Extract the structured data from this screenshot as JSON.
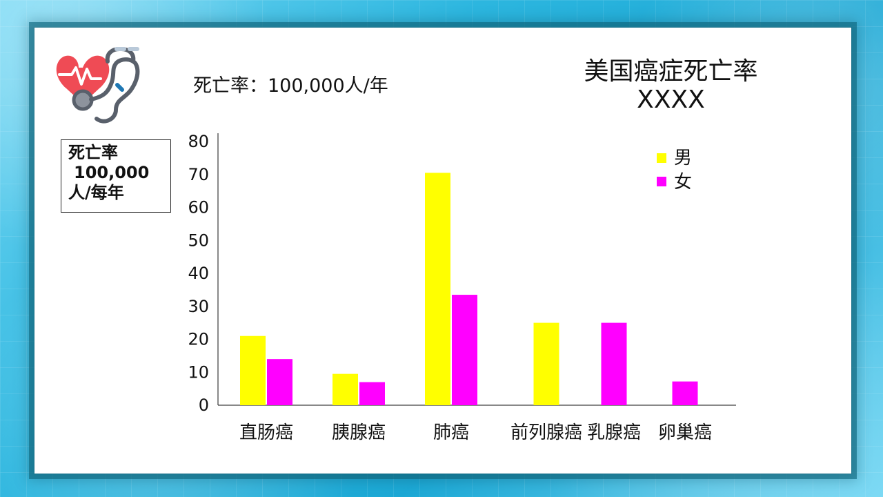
{
  "header": {
    "unit_text": "死亡率：100,000人/年",
    "title_line1": "美国癌症死亡率",
    "title_line2": "XXXX"
  },
  "unit_box": {
    "line1": "死亡率",
    "line2": "100,000",
    "line3": "人/每年"
  },
  "colors": {
    "male": "#ffff00",
    "female": "#ff00ff",
    "heart": "#ef4b55",
    "stethoscope": "#59606b",
    "accent": "#2cb6df"
  },
  "icons": {
    "logo": "heart-stethoscope-icon"
  },
  "chart_data": {
    "type": "bar",
    "categories": [
      "直肠癌",
      "胰腺癌",
      "肺癌",
      "前列腺癌",
      "乳腺癌",
      "卵巢癌"
    ],
    "series": [
      {
        "name": "男",
        "values": [
          21,
          9.5,
          70.5,
          25,
          null,
          null
        ]
      },
      {
        "name": "女",
        "values": [
          14,
          7,
          33.5,
          null,
          25,
          7.2
        ]
      }
    ],
    "yticks": [
      0,
      10,
      20,
      30,
      40,
      50,
      60,
      70,
      80
    ],
    "ylim": [
      0,
      80
    ],
    "legend": [
      "男",
      "女"
    ],
    "legend_position": "top-right",
    "grid": false
  }
}
